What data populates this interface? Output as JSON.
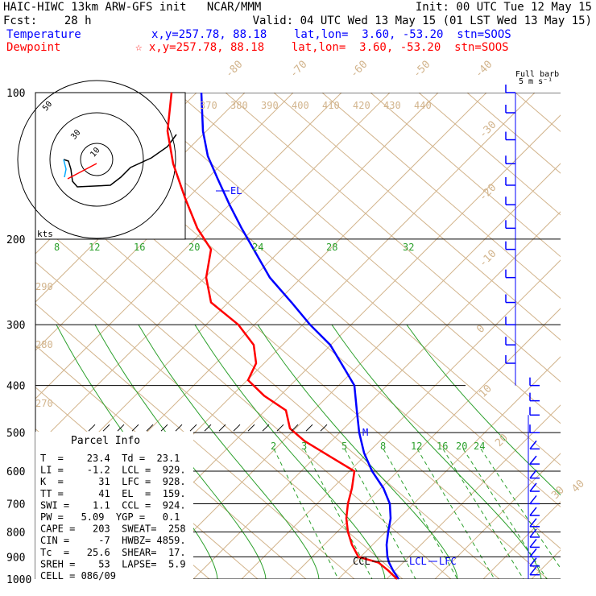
{
  "header": {
    "title": "HAIC-HIWC 13km ARW-GFS init   NCAR/MMM",
    "init": "Init: 00 UTC Tue 12 May 15",
    "fcst": "Fcst:    28 h",
    "valid": "Valid: 04 UTC Wed 13 May 15 (01 LST Wed 13 May 15)",
    "temperature_label": "Temperature",
    "temperature_info": "x,y=257.78, 88.18    lat,lon=  3.60, -53.20  stn=SOOS",
    "dewpoint_label": "Dewpoint",
    "dewpoint_info": "☆ x,y=257.78, 88.18    lat,lon=  3.60, -53.20  stn=SOOS"
  },
  "barb_key": {
    "line1": "Full barb",
    "line2": "5 m s⁻¹"
  },
  "hodograph": {
    "ring_labels": [
      "50",
      "30",
      "10"
    ],
    "units": "kts"
  },
  "parcel_info": {
    "title": "Parcel Info",
    "rows": [
      "T  =    23.4  Td =  23.1",
      "LI =    -1.2  LCL =  929.",
      "K  =      31  LFC =  928.",
      "TT =      41  EL  =  159.",
      "SWI =    1.1  CCL =  924.",
      "PW =   5.09  YGP =   0.1",
      "CAPE =   203  SWEAT=  258",
      "CIN =     -7  HWBZ= 4859.",
      "Tc  =   25.6  SHEAR=  17.",
      "SREH =    53  LAPSE=  5.9",
      "CELL = 086/09"
    ]
  },
  "chart_data": {
    "type": "line",
    "title": "",
    "xlabel": "",
    "ylabel": "",
    "ylim": [
      1000,
      100
    ],
    "pressure_labels": [
      "100",
      "200",
      "300",
      "400",
      "500",
      "600",
      "700",
      "800",
      "900",
      "1000"
    ],
    "isotherm_labels": [
      "-80",
      "-70",
      "-60",
      "-50",
      "-40",
      "-30",
      "-20",
      "-10",
      "0",
      "10",
      "20",
      "30",
      "40"
    ],
    "theta_labels": [
      "370",
      "380",
      "390",
      "400",
      "410",
      "420",
      "430",
      "440"
    ],
    "theta_left_labels": [
      "290",
      "280",
      "270"
    ],
    "moist_adiabat_labels": [
      "8",
      "12",
      "16",
      "20",
      "24",
      "28",
      "32"
    ],
    "mixing_ratio_labels": [
      "2",
      "3",
      "5",
      "8",
      "12",
      "16",
      "20",
      "24"
    ],
    "levels": [
      {
        "label": "EL",
        "text": "EL"
      },
      {
        "label": "M",
        "text": "M"
      },
      {
        "label": "CCL",
        "text": "CCL"
      },
      {
        "label": "LCL",
        "text": "LCL"
      },
      {
        "label": "LFC",
        "text": "LFC"
      }
    ],
    "series": [
      {
        "name": "Temperature",
        "color": "#0000ff",
        "points": [
          [
            1000,
            495
          ],
          [
            960,
            488
          ],
          [
            925,
            483
          ],
          [
            900,
            481
          ],
          [
            850,
            480
          ],
          [
            800,
            482
          ],
          [
            750,
            485
          ],
          [
            700,
            484
          ],
          [
            650,
            476
          ],
          [
            600,
            462
          ],
          [
            550,
            452
          ],
          [
            500,
            446
          ],
          [
            450,
            443
          ],
          [
            400,
            440
          ],
          [
            370,
            428
          ],
          [
            330,
            410
          ],
          [
            300,
            385
          ],
          [
            270,
            362
          ],
          [
            240,
            335
          ],
          [
            210,
            315
          ],
          [
            190,
            300
          ],
          [
            170,
            285
          ],
          [
            150,
            270
          ],
          [
            135,
            258
          ],
          [
            120,
            252
          ],
          [
            100,
            250
          ]
        ]
      },
      {
        "name": "Dewpoint",
        "color": "#ff0000",
        "points": [
          [
            1000,
            493
          ],
          [
            960,
            482
          ],
          [
            925,
            470
          ],
          [
            900,
            445
          ],
          [
            850,
            437
          ],
          [
            800,
            432
          ],
          [
            750,
            430
          ],
          [
            700,
            432
          ],
          [
            650,
            437
          ],
          [
            600,
            440
          ],
          [
            560,
            410
          ],
          [
            520,
            378
          ],
          [
            490,
            360
          ],
          [
            450,
            355
          ],
          [
            420,
            328
          ],
          [
            390,
            308
          ],
          [
            360,
            318
          ],
          [
            330,
            315
          ],
          [
            300,
            296
          ],
          [
            270,
            262
          ],
          [
            240,
            256
          ],
          [
            210,
            262
          ],
          [
            190,
            245
          ],
          [
            165,
            230
          ],
          [
            140,
            215
          ],
          [
            120,
            208
          ],
          [
            100,
            213
          ]
        ]
      }
    ],
    "hodograph_series": [
      {
        "name": "wind",
        "color": "#000000"
      },
      {
        "name": "shear",
        "color": "#ff0000"
      },
      {
        "name": "storm",
        "color": "#00aaff"
      }
    ]
  }
}
